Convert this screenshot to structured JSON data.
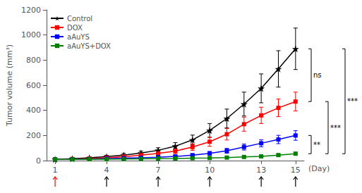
{
  "chart_data": {
    "type": "line",
    "x": [
      1,
      2,
      3,
      4,
      5,
      6,
      7,
      8,
      9,
      10,
      11,
      12,
      13,
      14,
      15
    ],
    "xlim": [
      0.5,
      15.5
    ],
    "xticks": [
      1,
      4,
      7,
      10,
      13,
      15
    ],
    "xlabel": "(Day)",
    "ylabel": "Tumor volume (mm³)",
    "ylim": [
      0,
      1200
    ],
    "yticks": [
      0,
      200,
      400,
      600,
      800,
      1000,
      1200
    ],
    "grid": false,
    "legend": "upper left",
    "series": [
      {
        "name": "Control",
        "color": "#000000",
        "marker": "star",
        "values": [
          10,
          15,
          22,
          32,
          44,
          60,
          82,
          115,
          165,
          240,
          335,
          450,
          575,
          730,
          890
        ],
        "errors": [
          4,
          5,
          7,
          10,
          13,
          16,
          20,
          28,
          38,
          55,
          75,
          95,
          115,
          145,
          165
        ]
      },
      {
        "name": "DOX",
        "color": "#ff0000",
        "marker": "square",
        "values": [
          10,
          13,
          17,
          23,
          31,
          43,
          57,
          76,
          108,
          150,
          210,
          290,
          360,
          420,
          470
        ],
        "errors": [
          4,
          4,
          5,
          7,
          9,
          12,
          15,
          20,
          26,
          36,
          46,
          56,
          65,
          70,
          75
        ]
      },
      {
        "name": "aAuYS",
        "color": "#0000ff",
        "marker": "square",
        "values": [
          10,
          11,
          13,
          16,
          19,
          23,
          27,
          33,
          43,
          58,
          78,
          108,
          138,
          168,
          200
        ],
        "errors": [
          3,
          3,
          4,
          4,
          5,
          6,
          7,
          9,
          11,
          14,
          19,
          24,
          28,
          33,
          38
        ]
      },
      {
        "name": "aAuYS+DOX",
        "color": "#008000",
        "marker": "square",
        "values": [
          10,
          10,
          11,
          11,
          12,
          14,
          16,
          17,
          19,
          21,
          24,
          29,
          34,
          44,
          55
        ],
        "errors": [
          2,
          2,
          2,
          3,
          3,
          3,
          4,
          4,
          4,
          5,
          5,
          6,
          7,
          9,
          11
        ]
      }
    ],
    "arrows": [
      {
        "x": 4,
        "color": "#000000"
      },
      {
        "x": 7,
        "color": "#000000"
      },
      {
        "x": 10,
        "color": "#000000"
      },
      {
        "x": 13,
        "color": "#000000"
      },
      {
        "x": 15,
        "color": "#000000"
      },
      {
        "x": 1,
        "color": "#ff0000"
      }
    ],
    "brackets": [
      {
        "label": "ns",
        "series": [
          "Control",
          "DOX"
        ]
      },
      {
        "label": "**",
        "series": [
          "aAuYS",
          "aAuYS+DOX"
        ]
      },
      {
        "label": "***",
        "series": [
          "DOX",
          "aAuYS+DOX"
        ]
      },
      {
        "label": "***",
        "series": [
          "Control",
          "aAuYS+DOX"
        ]
      }
    ]
  }
}
